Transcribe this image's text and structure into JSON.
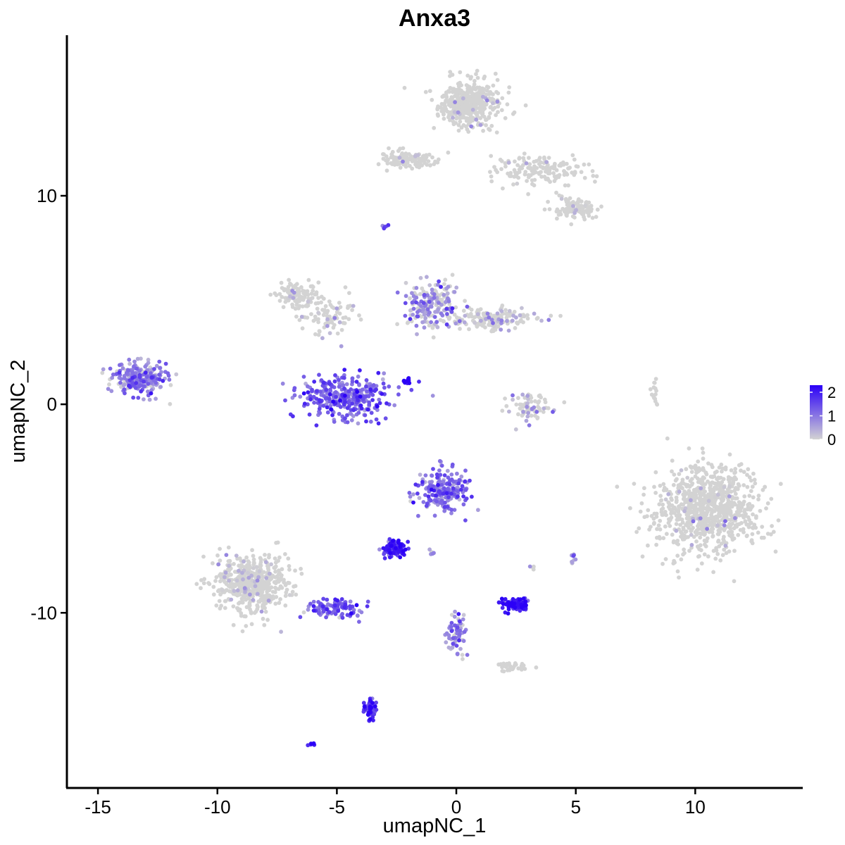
{
  "chart_data": {
    "type": "scatter",
    "title": "Anxa3",
    "xlabel": "umapNC_1",
    "ylabel": "umapNC_2",
    "xlim": [
      -16.3,
      14.5
    ],
    "ylim": [
      -18.4,
      17.7
    ],
    "x_ticks": [
      -15,
      -10,
      -5,
      0,
      5,
      10
    ],
    "x_tick_labels": [
      "-15",
      "-10",
      "-5",
      "0",
      "5",
      "10"
    ],
    "y_ticks": [
      -10,
      0,
      10
    ],
    "y_tick_labels": [
      "-10",
      "0",
      "10"
    ],
    "grid": false,
    "legend": {
      "position": "right",
      "type": "colorbar",
      "min": 0,
      "max": 2.3,
      "ticks": [
        0,
        1,
        2
      ],
      "tick_labels": [
        "0",
        "1",
        "2"
      ]
    },
    "colors": {
      "low": "#d3d3d3",
      "high": "#2b00f7"
    },
    "clusters": [
      {
        "center": [
          0.6,
          14.4
        ],
        "spread": [
          1.2,
          1.0
        ],
        "count": 420,
        "expr": 0.05
      },
      {
        "center": [
          -2.0,
          11.7
        ],
        "spread": [
          1.0,
          0.35
        ],
        "count": 120,
        "expr": 0.05
      },
      {
        "center": [
          3.5,
          11.2
        ],
        "spread": [
          1.8,
          0.7
        ],
        "count": 150,
        "expr": 0.05
      },
      {
        "center": [
          5.0,
          9.4
        ],
        "spread": [
          0.9,
          0.5
        ],
        "count": 110,
        "expr": 0.05
      },
      {
        "center": [
          -6.6,
          5.3
        ],
        "spread": [
          0.8,
          0.6
        ],
        "count": 120,
        "expr": 0.1
      },
      {
        "center": [
          -5.2,
          4.2
        ],
        "spread": [
          1.2,
          0.8
        ],
        "count": 80,
        "expr": 0.15
      },
      {
        "center": [
          -4.7,
          0.3
        ],
        "spread": [
          1.8,
          0.9
        ],
        "count": 320,
        "expr": 1.2
      },
      {
        "center": [
          -1.0,
          4.8
        ],
        "spread": [
          1.0,
          1.0
        ],
        "count": 200,
        "expr": 0.7
      },
      {
        "center": [
          1.5,
          4.1
        ],
        "spread": [
          1.6,
          0.5
        ],
        "count": 160,
        "expr": 0.25
      },
      {
        "center": [
          -13.3,
          1.2
        ],
        "spread": [
          1.0,
          0.7
        ],
        "count": 260,
        "expr": 0.9
      },
      {
        "center": [
          3.1,
          -0.2
        ],
        "spread": [
          0.9,
          0.6
        ],
        "count": 70,
        "expr": 0.4
      },
      {
        "center": [
          8.3,
          0.4
        ],
        "spread": [
          0.15,
          0.6
        ],
        "count": 15,
        "expr": 0.0
      },
      {
        "center": [
          10.5,
          -5.0
        ],
        "spread": [
          2.0,
          1.8
        ],
        "count": 850,
        "expr": 0.05
      },
      {
        "center": [
          -0.5,
          -4.1
        ],
        "spread": [
          1.0,
          0.9
        ],
        "count": 200,
        "expr": 1.1
      },
      {
        "center": [
          -2.6,
          -6.9
        ],
        "spread": [
          0.4,
          0.3
        ],
        "count": 90,
        "expr": 2.0
      },
      {
        "center": [
          -8.5,
          -8.6
        ],
        "spread": [
          1.4,
          1.3
        ],
        "count": 520,
        "expr": 0.15
      },
      {
        "center": [
          -5.0,
          -9.8
        ],
        "spread": [
          1.0,
          0.4
        ],
        "count": 110,
        "expr": 1.3
      },
      {
        "center": [
          2.4,
          -9.6
        ],
        "spread": [
          0.6,
          0.25
        ],
        "count": 100,
        "expr": 1.9
      },
      {
        "center": [
          0.0,
          -11.0
        ],
        "spread": [
          0.4,
          1.0
        ],
        "count": 70,
        "expr": 0.9
      },
      {
        "center": [
          2.2,
          -12.6
        ],
        "spread": [
          0.6,
          0.2
        ],
        "count": 35,
        "expr": 0.05
      },
      {
        "center": [
          -3.6,
          -14.6
        ],
        "spread": [
          0.25,
          0.5
        ],
        "count": 55,
        "expr": 1.8
      },
      {
        "center": [
          -6.1,
          -16.3
        ],
        "spread": [
          0.1,
          0.08
        ],
        "count": 6,
        "expr": 2.1
      },
      {
        "center": [
          -1.9,
          1.1
        ],
        "spread": [
          0.35,
          0.2
        ],
        "count": 12,
        "expr": 2.2
      },
      {
        "center": [
          -3.0,
          8.5
        ],
        "spread": [
          0.15,
          0.1
        ],
        "count": 6,
        "expr": 1.0
      },
      {
        "center": [
          4.9,
          -7.4
        ],
        "spread": [
          0.15,
          0.25
        ],
        "count": 10,
        "expr": 0.8
      },
      {
        "center": [
          3.2,
          -7.8
        ],
        "spread": [
          0.1,
          0.1
        ],
        "count": 4,
        "expr": 0.5
      },
      {
        "center": [
          -1.0,
          -7.1
        ],
        "spread": [
          0.15,
          0.1
        ],
        "count": 5,
        "expr": 1.0
      }
    ]
  }
}
